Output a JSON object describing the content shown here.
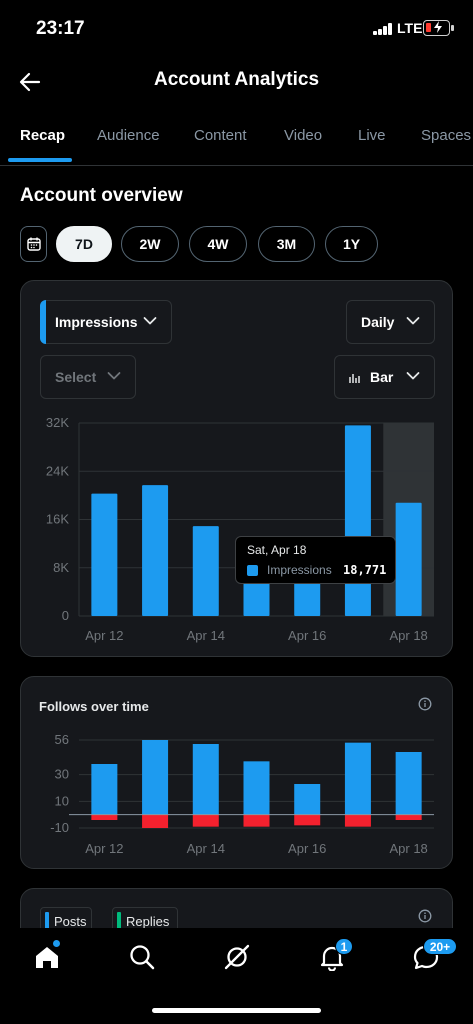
{
  "status": {
    "time": "23:17",
    "network": "LTE"
  },
  "header": {
    "title": "Account Analytics"
  },
  "tabs": [
    "Recap",
    "Audience",
    "Content",
    "Video",
    "Live",
    "Spaces"
  ],
  "overview": {
    "title": "Account overview",
    "ranges": [
      "7D",
      "2W",
      "4W",
      "3M",
      "1Y"
    ],
    "selected_range": "7D"
  },
  "impressions_card": {
    "metric": "Impressions",
    "interval": "Daily",
    "compare": "Select",
    "chart_type_label": "Bar",
    "tooltip": {
      "date": "Sat, Apr 18",
      "label": "Impressions",
      "value": "18,771"
    }
  },
  "follows_card": {
    "title": "Follows over time"
  },
  "posts_card": {
    "legend": [
      "Posts",
      "Replies"
    ]
  },
  "nav": {
    "items": [
      "home-icon",
      "search-icon",
      "grok-icon",
      "notifications-icon",
      "messages-icon"
    ],
    "notifications_badge": "1",
    "messages_badge": "20+"
  },
  "colors": {
    "accent": "#1d9bf0",
    "negative": "#f4212e",
    "replies": "#00ba7c"
  },
  "chart_data": [
    {
      "type": "bar",
      "title": "",
      "categories": [
        "Apr 12",
        "Apr 13",
        "Apr 14",
        "Apr 15",
        "Apr 16",
        "Apr 17",
        "Apr 18"
      ],
      "x_tick_labels": [
        "Apr 12",
        "Apr 14",
        "Apr 16",
        "Apr 18"
      ],
      "series": [
        {
          "name": "Impressions",
          "values": [
            20300,
            21700,
            14900,
            7000,
            6000,
            31600,
            18771
          ]
        }
      ],
      "y_ticks": [
        "0",
        "8K",
        "16K",
        "24K",
        "32K"
      ],
      "ylim": [
        0,
        32000
      ],
      "highlighted": "Apr 18",
      "grid": true
    },
    {
      "type": "bar",
      "title": "Follows over time",
      "categories": [
        "Apr 12",
        "Apr 13",
        "Apr 14",
        "Apr 15",
        "Apr 16",
        "Apr 17",
        "Apr 18"
      ],
      "x_tick_labels": [
        "Apr 12",
        "Apr 14",
        "Apr 16",
        "Apr 18"
      ],
      "series": [
        {
          "name": "",
          "values": [
            38,
            56,
            53,
            40,
            23,
            54,
            47
          ]
        },
        {
          "name": "",
          "values": [
            -4,
            -10,
            -9,
            -9,
            -8,
            -9,
            -4
          ]
        }
      ],
      "y_ticks": [
        "-10",
        "10",
        "30",
        "56"
      ],
      "ylim": [
        -10,
        56
      ],
      "grid": true
    }
  ]
}
